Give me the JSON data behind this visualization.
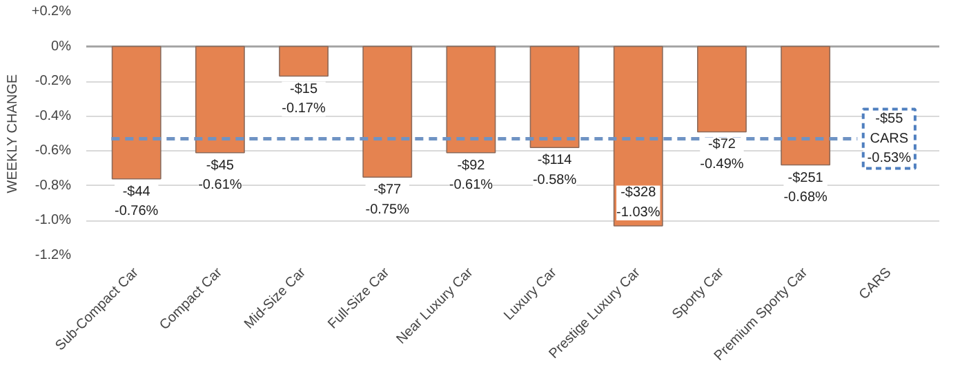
{
  "chart_data": {
    "type": "bar",
    "ylabel": "WEEKLY CHANGE",
    "categories": [
      "Sub-Compact Car",
      "Compact Car",
      "Mid-Size Car",
      "Full-Size Car",
      "Near Luxury Car",
      "Luxury Car",
      "Prestige Luxury Car",
      "Sporty Car",
      "Premium Sporty Car",
      "CARS"
    ],
    "values": [
      -0.76,
      -0.61,
      -0.17,
      -0.75,
      -0.61,
      -0.58,
      -1.03,
      -0.49,
      -0.68,
      null
    ],
    "value_labels": [
      "-$44\n-0.76%",
      "-$45\n-0.61%",
      "-$15\n-0.17%",
      "-$77\n-0.75%",
      "-$92\n-0.61%",
      "-$114\n-0.58%",
      "-$328\n-1.03%",
      "-$72\n-0.49%",
      "-$251\n-0.68%",
      null
    ],
    "color": "#e58350",
    "ylim": [
      -1.2,
      0.2
    ],
    "yticks": [
      {
        "value": 0.2,
        "label": "+0.2%"
      },
      {
        "value": 0,
        "label": "0%"
      },
      {
        "value": -0.2,
        "label": "-0.2%"
      },
      {
        "value": -0.4,
        "label": "-0.4%"
      },
      {
        "value": -0.6,
        "label": "-0.6%"
      },
      {
        "value": -0.8,
        "label": "-0.8%"
      },
      {
        "value": -1.0,
        "label": "-1.0%"
      },
      {
        "value": -1.2,
        "label": "-1.2%"
      }
    ],
    "grid": "y",
    "ref_lines": [
      {
        "axis": "y",
        "value": -0.53,
        "color": "#6f93c4",
        "line_style": "dashed"
      }
    ],
    "annotations": [
      {
        "text": "-$55\nCARS\n-0.53%",
        "x": "CARS",
        "y": -0.53
      }
    ]
  }
}
